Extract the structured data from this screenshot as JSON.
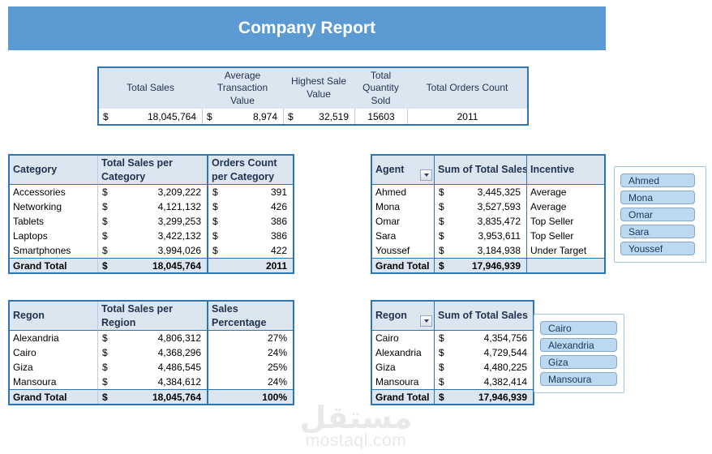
{
  "banner": {
    "title": "Company Report"
  },
  "colors": {
    "banner": "#5b9ad3",
    "table_border": "#2e75b6",
    "light_line": "#b8cce4",
    "header_bg": "#dce6f1",
    "header_text": "#1f3250",
    "slicer_btn_bg": "#bcd9f1",
    "slicer_btn_border": "#86a7c5",
    "slicer_box_border": "#9dc3e6",
    "watermark": "#e9e9e7"
  },
  "summary": {
    "headers": [
      "Total Sales",
      "Average Transaction Value",
      "Highest Sale Value",
      "Total Quantity Sold",
      "Total Orders Count"
    ],
    "values": [
      {
        "cur": "$",
        "val": "18,045,764"
      },
      {
        "cur": "$",
        "val": "8,974"
      },
      {
        "cur": "$",
        "val": "32,519"
      },
      {
        "cur": "",
        "val": "15603"
      },
      {
        "cur": "",
        "val": "2011"
      }
    ]
  },
  "category": {
    "headers": [
      "Category",
      "Total Sales per Category",
      "Orders Count per Category"
    ],
    "rows": [
      {
        "name": "Accessories",
        "cur": "$",
        "sales": "3,209,222",
        "cur2": "$",
        "orders": "391"
      },
      {
        "name": "Networking",
        "cur": "$",
        "sales": "4,121,132",
        "cur2": "$",
        "orders": "426"
      },
      {
        "name": "Tablets",
        "cur": "$",
        "sales": "3,299,253",
        "cur2": "$",
        "orders": "386"
      },
      {
        "name": "Laptops",
        "cur": "$",
        "sales": "3,422,132",
        "cur2": "$",
        "orders": "386"
      },
      {
        "name": "Smartphones",
        "cur": "$",
        "sales": "3,994,026",
        "cur2": "$",
        "orders": "422"
      }
    ],
    "grand_total": {
      "name": "Grand Total",
      "cur": "$",
      "sales": "18,045,764",
      "cur2": "",
      "orders": "2011"
    }
  },
  "agent": {
    "headers": [
      "Agent",
      "Sum of Total Sales",
      "Incentive"
    ],
    "rows": [
      {
        "name": "Ahmed",
        "cur": "$",
        "sales": "3,445,325",
        "incentive": "Average"
      },
      {
        "name": "Mona",
        "cur": "$",
        "sales": "3,527,593",
        "incentive": "Average"
      },
      {
        "name": "Omar",
        "cur": "$",
        "sales": "3,835,472",
        "incentive": "Top Seller"
      },
      {
        "name": "Sara",
        "cur": "$",
        "sales": "3,953,611",
        "incentive": "Top Seller"
      },
      {
        "name": "Youssef",
        "cur": "$",
        "sales": "3,184,938",
        "incentive": "Under Target"
      }
    ],
    "grand_total": {
      "name": "Grand Total",
      "cur": "$",
      "sales": "17,946,939",
      "incentive": ""
    }
  },
  "agent_slicer": {
    "items": [
      "Ahmed",
      "Mona",
      "Omar",
      "Sara",
      "Youssef"
    ]
  },
  "region": {
    "headers": [
      "Regon",
      "Total Sales per Region",
      "Sales Percentage"
    ],
    "rows": [
      {
        "name": "Alexandria",
        "cur": "$",
        "sales": "4,806,312",
        "pct": "27%"
      },
      {
        "name": "Cairo",
        "cur": "$",
        "sales": "4,368,296",
        "pct": "24%"
      },
      {
        "name": "Giza",
        "cur": "$",
        "sales": "4,486,545",
        "pct": "25%"
      },
      {
        "name": "Mansoura",
        "cur": "$",
        "sales": "4,384,612",
        "pct": "24%"
      }
    ],
    "grand_total": {
      "name": "Grand Total",
      "cur": "$",
      "sales": "18,045,764",
      "pct": "100%"
    }
  },
  "region_pivot": {
    "headers": [
      "Regon",
      "Sum of Total Sales"
    ],
    "rows": [
      {
        "name": "Cairo",
        "cur": "$",
        "sales": "4,354,756"
      },
      {
        "name": "Alexandria",
        "cur": "$",
        "sales": "4,729,544"
      },
      {
        "name": "Giza",
        "cur": "$",
        "sales": "4,480,225"
      },
      {
        "name": "Mansoura",
        "cur": "$",
        "sales": "4,382,414"
      }
    ],
    "grand_total": {
      "name": "Grand Total",
      "cur": "$",
      "sales": "17,946,939"
    }
  },
  "region_slicer": {
    "items": [
      "Cairo",
      "Alexandria",
      "Giza",
      "Mansoura"
    ]
  },
  "watermark": {
    "logo": "مستقل",
    "domain": "mostaql.com"
  }
}
